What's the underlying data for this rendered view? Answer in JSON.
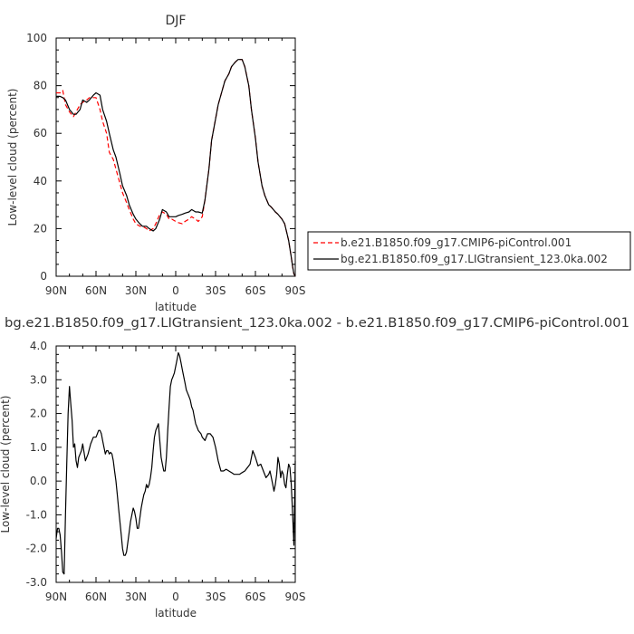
{
  "chart_data": [
    {
      "type": "line",
      "title": "DJF",
      "xlabel": "latitude",
      "ylabel": "Low-level cloud (percent)",
      "xlim": [
        90,
        -90
      ],
      "ylim": [
        0,
        100
      ],
      "x_ticks": [
        90,
        60,
        30,
        0,
        -30,
        -60,
        -90
      ],
      "x_tick_labels": [
        "90N",
        "60N",
        "30N",
        "0",
        "30S",
        "60S",
        "90S"
      ],
      "y_ticks": [
        0,
        20,
        40,
        60,
        80,
        100
      ],
      "y_tick_labels": [
        "0",
        "20",
        "40",
        "60",
        "80",
        "100"
      ],
      "legend_position": "right",
      "series": [
        {
          "name": "b.e21.B1850.f09_g17.CMIP6-piControl.001",
          "color": "#ff0000",
          "dash": "dashed",
          "x": [
            90,
            87,
            85,
            83,
            80,
            77,
            75,
            72,
            70,
            67,
            65,
            62,
            60,
            57,
            55,
            52,
            50,
            47,
            45,
            42,
            40,
            37,
            35,
            32,
            30,
            27,
            25,
            22,
            20,
            17,
            15,
            12,
            10,
            7,
            5,
            3,
            0,
            -2,
            -5,
            -7,
            -10,
            -12,
            -15,
            -17,
            -20,
            -22,
            -25,
            -27,
            -30,
            -32,
            -35,
            -37,
            -40,
            -42,
            -45,
            -47,
            -50,
            -52,
            -55,
            -57,
            -60,
            -62,
            -65,
            -67,
            -70,
            -72,
            -75,
            -77,
            -80,
            -82,
            -85,
            -87,
            -88,
            -89,
            -90
          ],
          "y": [
            77,
            77,
            78,
            72,
            69,
            67,
            69,
            72,
            73,
            74,
            75,
            75,
            75,
            70,
            65,
            60,
            52,
            49,
            45,
            39,
            35,
            31,
            28,
            24,
            22,
            21,
            21,
            20,
            19,
            20,
            22,
            26,
            27,
            26,
            24,
            24,
            23,
            22.5,
            22,
            23,
            24,
            25,
            24,
            23,
            25,
            32,
            45,
            57,
            66,
            72,
            78,
            82,
            85,
            88,
            90,
            91,
            91,
            88,
            80,
            70,
            58,
            48,
            38,
            34,
            30,
            29,
            27,
            26,
            24,
            22,
            15,
            8,
            4,
            1,
            0
          ]
        },
        {
          "name": "bg.e21.B1850.f09_g17.LIGtransient_123.0ka.002",
          "color": "#000000",
          "dash": "solid",
          "x": [
            90,
            87,
            85,
            83,
            80,
            77,
            75,
            72,
            70,
            67,
            65,
            62,
            60,
            57,
            55,
            52,
            50,
            47,
            45,
            42,
            40,
            37,
            35,
            32,
            30,
            27,
            25,
            22,
            20,
            17,
            15,
            12,
            10,
            7,
            5,
            3,
            0,
            -2,
            -5,
            -7,
            -10,
            -12,
            -15,
            -17,
            -20,
            -22,
            -25,
            -27,
            -30,
            -32,
            -35,
            -37,
            -40,
            -42,
            -45,
            -47,
            -50,
            -52,
            -55,
            -57,
            -60,
            -62,
            -65,
            -67,
            -70,
            -72,
            -75,
            -77,
            -80,
            -82,
            -85,
            -87,
            -88,
            -89,
            -90
          ],
          "y": [
            75.5,
            75.5,
            75,
            74,
            70,
            68,
            68,
            70,
            74,
            73,
            74,
            76,
            77,
            76,
            70,
            65,
            60,
            53,
            50,
            43,
            38,
            34,
            30,
            26,
            24,
            22,
            21,
            21,
            20,
            19,
            20,
            24,
            28,
            27,
            25,
            25,
            25,
            25.5,
            26,
            26.5,
            27,
            28,
            27,
            27,
            26.5,
            32,
            45,
            57,
            66,
            72,
            78,
            82,
            85,
            88,
            90,
            91,
            91,
            88,
            80,
            70,
            58,
            48,
            38,
            34,
            30,
            29,
            27,
            26,
            24,
            22,
            15,
            8,
            4,
            1,
            0
          ]
        }
      ]
    },
    {
      "type": "line",
      "title": "bg.e21.B1850.f09_g17.LIGtransient_123.0ka.002 - b.e21.B1850.f09_g17.CMIP6-piControl.001",
      "xlabel": "latitude",
      "ylabel": "Low-level cloud (percent)",
      "xlim": [
        90,
        -90
      ],
      "ylim": [
        -3.0,
        4.0
      ],
      "x_ticks": [
        90,
        60,
        30,
        0,
        -30,
        -60,
        -90
      ],
      "x_tick_labels": [
        "90N",
        "60N",
        "30N",
        "0",
        "30S",
        "60S",
        "90S"
      ],
      "y_ticks": [
        -3.0,
        -2.0,
        -1.0,
        0.0,
        1.0,
        2.0,
        3.0,
        4.0
      ],
      "y_tick_labels": [
        "-3.0",
        "-2.0",
        "-1.0",
        "0.0",
        "1.0",
        "2.0",
        "3.0",
        "4.0"
      ],
      "series": [
        {
          "color": "#000000",
          "dash": "solid",
          "x": [
            90,
            89,
            88,
            87,
            86,
            85,
            84,
            83,
            82,
            81,
            80,
            79,
            78,
            77,
            76,
            75,
            74,
            73,
            72,
            71,
            70,
            68,
            66,
            64,
            62,
            60,
            59,
            58,
            57,
            56,
            55,
            54,
            53,
            52,
            51,
            50,
            49,
            48,
            47,
            46,
            45,
            44,
            43,
            42,
            41,
            40,
            39,
            38,
            37,
            36,
            35,
            34,
            33,
            32,
            31,
            30,
            29,
            28,
            27,
            26,
            25,
            24,
            23,
            22,
            21,
            20,
            19,
            18,
            17,
            16,
            15,
            14,
            13,
            12,
            11,
            10,
            9,
            8,
            7,
            6,
            5,
            4,
            3,
            2,
            1,
            0,
            -1,
            -2,
            -3,
            -4,
            -5,
            -6,
            -7,
            -8,
            -9,
            -10,
            -11,
            -12,
            -13,
            -14,
            -15,
            -16,
            -17,
            -18,
            -19,
            -20,
            -22,
            -24,
            -26,
            -28,
            -30,
            -32,
            -34,
            -36,
            -38,
            -40,
            -42,
            -44,
            -46,
            -48,
            -50,
            -52,
            -54,
            -56,
            -58,
            -60,
            -62,
            -64,
            -66,
            -68,
            -70,
            -71,
            -72,
            -73,
            -74,
            -75,
            -76,
            -77,
            -78,
            -79,
            -80,
            -81,
            -82,
            -83,
            -84,
            -85,
            -86,
            -87,
            -88,
            -89,
            -90
          ],
          "y": [
            -1.7,
            -1.4,
            -1.4,
            -1.6,
            -2.1,
            -2.7,
            -2.75,
            -1.0,
            0.5,
            2.0,
            2.8,
            2.3,
            1.8,
            1.0,
            1.1,
            0.6,
            0.4,
            0.7,
            0.8,
            0.9,
            1.1,
            0.6,
            0.8,
            1.1,
            1.3,
            1.3,
            1.4,
            1.5,
            1.5,
            1.4,
            1.2,
            1.0,
            0.8,
            0.9,
            0.9,
            0.8,
            0.85,
            0.8,
            0.6,
            0.3,
            0.0,
            -0.4,
            -0.8,
            -1.2,
            -1.6,
            -2.0,
            -2.2,
            -2.2,
            -2.1,
            -1.8,
            -1.5,
            -1.2,
            -1.0,
            -0.8,
            -0.9,
            -1.1,
            -1.4,
            -1.4,
            -1.1,
            -0.8,
            -0.6,
            -0.4,
            -0.3,
            -0.1,
            -0.2,
            -0.1,
            0.1,
            0.4,
            0.9,
            1.3,
            1.5,
            1.6,
            1.7,
            1.2,
            0.7,
            0.5,
            0.3,
            0.3,
            0.7,
            1.5,
            2.2,
            2.8,
            3.0,
            3.1,
            3.2,
            3.4,
            3.6,
            3.8,
            3.7,
            3.5,
            3.3,
            3.1,
            2.9,
            2.7,
            2.6,
            2.5,
            2.4,
            2.2,
            2.1,
            1.9,
            1.7,
            1.6,
            1.5,
            1.45,
            1.4,
            1.3,
            1.2,
            1.4,
            1.4,
            1.3,
            1.0,
            0.6,
            0.3,
            0.3,
            0.35,
            0.3,
            0.25,
            0.2,
            0.2,
            0.2,
            0.25,
            0.3,
            0.4,
            0.5,
            0.9,
            0.7,
            0.45,
            0.5,
            0.3,
            0.1,
            0.2,
            0.3,
            0.1,
            -0.1,
            -0.3,
            -0.1,
            0.2,
            0.7,
            0.5,
            0.1,
            0.3,
            0.2,
            -0.1,
            -0.2,
            0.2,
            0.5,
            0.4,
            -0.1,
            -1.0,
            -1.9,
            0.6
          ]
        }
      ]
    }
  ]
}
